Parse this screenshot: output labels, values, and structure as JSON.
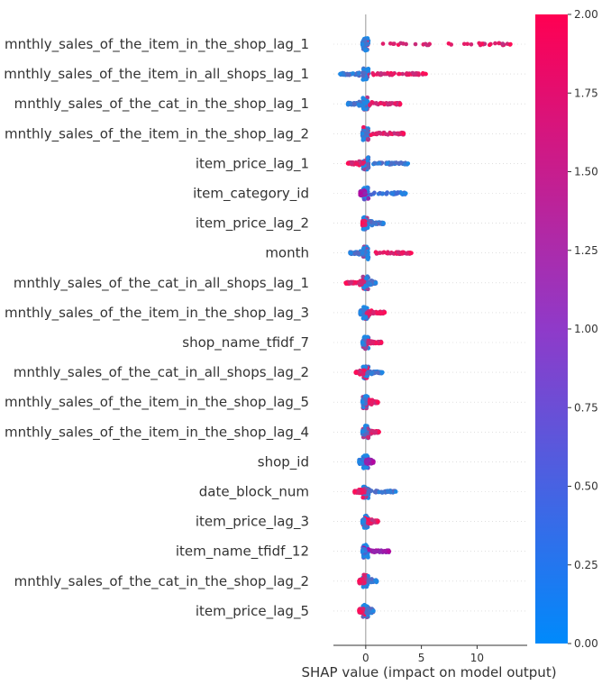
{
  "chart_data": {
    "type": "scatter",
    "subtype": "shap-summary-beeswarm",
    "xlabel": "SHAP value (impact on model output)",
    "xlim": [
      -2.9,
      14.5
    ],
    "x_ticks": [
      "0",
      "5",
      "10"
    ],
    "x_tick_values": [
      0,
      5,
      10
    ],
    "grid": false,
    "colorbar": {
      "range": [
        0.0,
        2.0
      ],
      "ticks": [
        "0.00",
        "0.25",
        "0.50",
        "0.75",
        "1.00",
        "1.25",
        "1.50",
        "1.75",
        "2.00"
      ],
      "tick_values": [
        0.0,
        0.25,
        0.5,
        0.75,
        1.0,
        1.25,
        1.5,
        1.75,
        2.0
      ],
      "colors": [
        "#008afb",
        "#ff0052"
      ]
    },
    "features": [
      {
        "name": "mnthly_sales_of_the_item_in_the_shop_lag_1",
        "min": -0.3,
        "max": 13.0,
        "low_end": "left",
        "color_low": "#1e88e5",
        "color_high": "#ff0d57"
      },
      {
        "name": "mnthly_sales_of_the_item_in_all_shops_lag_1",
        "min": -2.3,
        "max": 5.4,
        "low_end": "left",
        "color_low": "#1e88e5",
        "color_high": "#ff0d57"
      },
      {
        "name": "mnthly_sales_of_the_cat_in_the_shop_lag_1",
        "min": -1.6,
        "max": 3.1,
        "low_end": "left",
        "color_low": "#1e88e5",
        "color_high": "#ff0d57"
      },
      {
        "name": "mnthly_sales_of_the_item_in_the_shop_lag_2",
        "min": -0.3,
        "max": 3.4,
        "low_end": "left",
        "color_low": "#1e88e5",
        "color_high": "#ff0d57"
      },
      {
        "name": "item_price_lag_1",
        "min": -1.6,
        "max": 3.8,
        "low_end": "right",
        "color_low": "#1e88e5",
        "color_high": "#ff0d57"
      },
      {
        "name": "item_category_id",
        "min": -0.5,
        "max": 3.6,
        "low_end": "right",
        "color_low": "#1e88e5",
        "color_high": "#b4079e"
      },
      {
        "name": "item_price_lag_2",
        "min": -0.3,
        "max": 1.6,
        "low_end": "right",
        "color_low": "#1e88e5",
        "color_high": "#ff0d57"
      },
      {
        "name": "month",
        "min": -1.4,
        "max": 4.1,
        "low_end": "left",
        "color_low": "#1e88e5",
        "color_high": "#ff0d57"
      },
      {
        "name": "mnthly_sales_of_the_cat_in_all_shops_lag_1",
        "min": -1.8,
        "max": 0.9,
        "low_end": "right",
        "color_low": "#1e88e5",
        "color_high": "#ff0d57"
      },
      {
        "name": "mnthly_sales_of_the_item_in_the_shop_lag_3",
        "min": -0.5,
        "max": 1.7,
        "low_end": "left",
        "color_low": "#1e88e5",
        "color_high": "#ff0d57"
      },
      {
        "name": "shop_name_tfidf_7",
        "min": -0.3,
        "max": 1.4,
        "low_end": "left",
        "color_low": "#1e88e5",
        "color_high": "#ff0d57"
      },
      {
        "name": "mnthly_sales_of_the_cat_in_all_shops_lag_2",
        "min": -0.9,
        "max": 1.5,
        "low_end": "right",
        "color_low": "#1e88e5",
        "color_high": "#ff0d57"
      },
      {
        "name": "mnthly_sales_of_the_item_in_the_shop_lag_5",
        "min": -0.3,
        "max": 1.1,
        "low_end": "left",
        "color_low": "#1e88e5",
        "color_high": "#ff0d57"
      },
      {
        "name": "mnthly_sales_of_the_item_in_the_shop_lag_4",
        "min": -0.3,
        "max": 1.2,
        "low_end": "left",
        "color_low": "#1e88e5",
        "color_high": "#ff0d57"
      },
      {
        "name": "shop_id",
        "min": -0.6,
        "max": 0.7,
        "low_end": "left",
        "color_low": "#1e88e5",
        "color_high": "#b4079e"
      },
      {
        "name": "date_block_num",
        "min": -1.0,
        "max": 2.7,
        "low_end": "right",
        "color_low": "#1e88e5",
        "color_high": "#ff0d57"
      },
      {
        "name": "item_price_lag_3",
        "min": -0.3,
        "max": 1.1,
        "low_end": "left",
        "color_low": "#1e88e5",
        "color_high": "#ff0d57"
      },
      {
        "name": "item_name_tfidf_12",
        "min": -0.3,
        "max": 2.1,
        "low_end": "left",
        "color_low": "#1e88e5",
        "color_high": "#b4079e"
      },
      {
        "name": "mnthly_sales_of_the_cat_in_the_shop_lag_2",
        "min": -0.6,
        "max": 1.0,
        "low_end": "right",
        "color_low": "#1e88e5",
        "color_high": "#ff0d57"
      },
      {
        "name": "item_price_lag_5",
        "min": -0.6,
        "max": 0.7,
        "low_end": "right",
        "color_low": "#1e88e5",
        "color_high": "#ff0d57"
      }
    ]
  }
}
